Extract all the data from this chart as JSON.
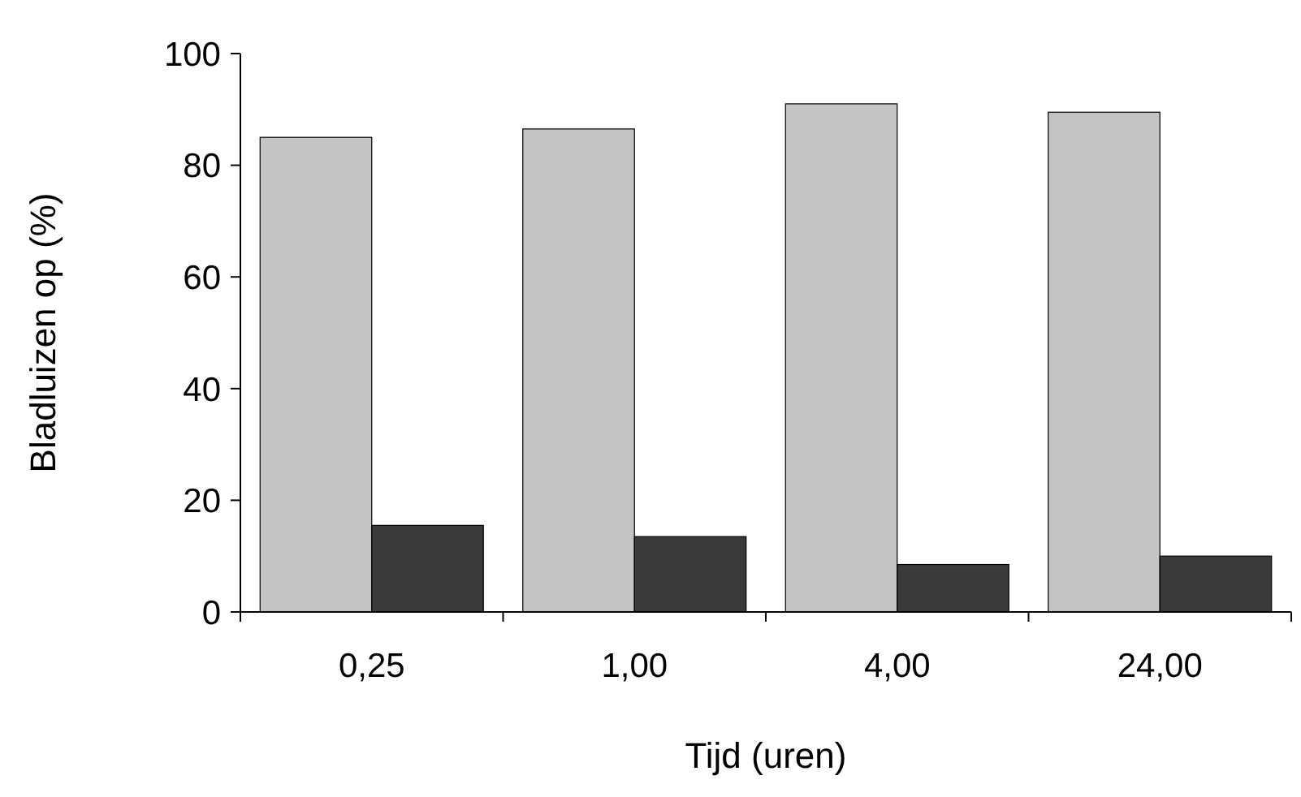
{
  "chart_data": {
    "type": "bar",
    "xlabel": "Tijd (uren)",
    "ylabel": "Bladluizen op (%)",
    "categories": [
      "0,25",
      "1,00",
      "4,00",
      "24,00"
    ],
    "series": [
      {
        "color": "#c4c4c4",
        "values": [
          85,
          86.5,
          91,
          89.5
        ]
      },
      {
        "color": "#3a3a3a",
        "values": [
          15.5,
          13.5,
          8.5,
          10
        ]
      }
    ],
    "ylim": [
      0,
      100
    ],
    "yticks": [
      0,
      20,
      40,
      60,
      80,
      100
    ],
    "grid": false
  }
}
